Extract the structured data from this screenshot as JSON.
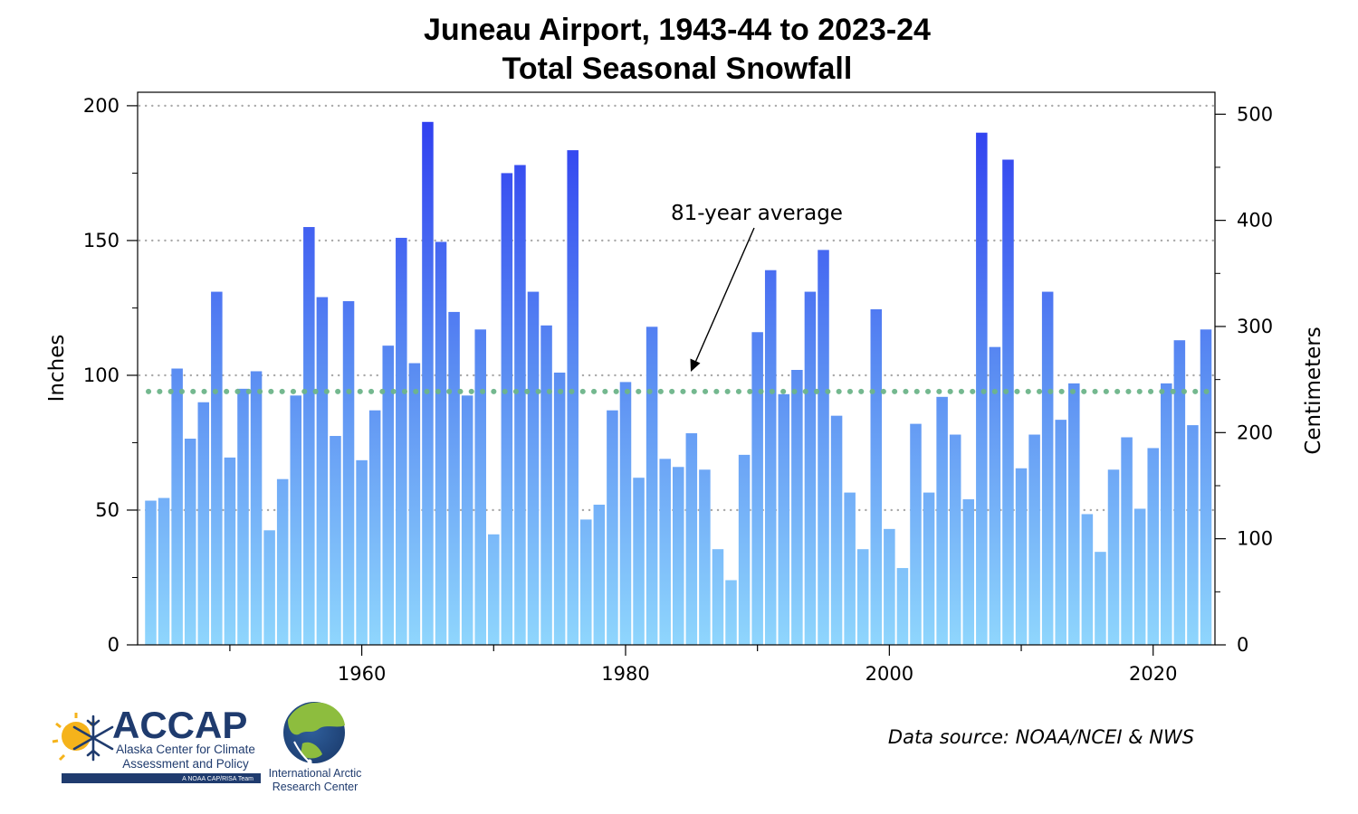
{
  "chart_data": {
    "type": "bar",
    "title_lines": [
      "Juneau Airport, 1943-44 to 2023-24",
      "Total Seasonal Snowfall"
    ],
    "ylabel": "Inches",
    "ylabel_right": "Centimeters",
    "ylim": [
      0,
      205
    ],
    "yticks": [
      0,
      50,
      100,
      150,
      200
    ],
    "ylim_right_cm": [
      0,
      520.7
    ],
    "yticks_right": [
      0,
      100,
      200,
      300,
      400,
      500
    ],
    "xticks": [
      1960,
      1980,
      2000,
      2020
    ],
    "grid": "horizontal dotted at 50, 100, 150, 200",
    "average": 94,
    "annotation": "81-year average",
    "source": "Data source: NOAA/NCEI & NWS",
    "colors": {
      "bar_top": "#2f3df2",
      "bar_bottom": "#8fd3fc",
      "average_line": "#6db58a",
      "grid": "#a9a9a9"
    },
    "years": [
      1944,
      1945,
      1946,
      1947,
      1948,
      1949,
      1950,
      1951,
      1952,
      1953,
      1954,
      1955,
      1956,
      1957,
      1958,
      1959,
      1960,
      1961,
      1962,
      1963,
      1964,
      1965,
      1966,
      1967,
      1968,
      1969,
      1970,
      1971,
      1972,
      1973,
      1974,
      1975,
      1976,
      1977,
      1978,
      1979,
      1980,
      1981,
      1982,
      1983,
      1984,
      1985,
      1986,
      1987,
      1988,
      1989,
      1990,
      1991,
      1992,
      1993,
      1994,
      1995,
      1996,
      1997,
      1998,
      1999,
      2000,
      2001,
      2002,
      2003,
      2004,
      2005,
      2006,
      2007,
      2008,
      2009,
      2010,
      2011,
      2012,
      2013,
      2014,
      2015,
      2016,
      2017,
      2018,
      2019,
      2020,
      2021,
      2022,
      2023,
      2024
    ],
    "values": [
      53.5,
      54.5,
      102.5,
      76.5,
      90,
      131,
      69.5,
      95,
      101.5,
      42.5,
      61.5,
      92.5,
      155,
      129,
      77.5,
      127.5,
      68.5,
      87,
      111,
      151,
      104.5,
      194,
      149.5,
      123.5,
      92.5,
      117,
      41,
      175,
      178,
      131,
      118.5,
      101,
      183.5,
      46.5,
      52,
      87,
      97.5,
      62,
      118,
      69,
      66,
      78.5,
      65,
      35.5,
      24,
      70.5,
      116,
      139,
      93,
      102,
      131,
      146.5,
      85,
      56.5,
      35.5,
      124.5,
      43,
      28.5,
      82,
      56.5,
      92,
      78,
      54,
      190,
      110.5,
      180,
      65.5,
      78,
      131,
      83.5,
      97,
      48.5,
      34.5,
      65,
      77,
      50.5,
      73,
      97,
      113,
      81.5,
      117
    ]
  },
  "logos": {
    "accap": {
      "name": "ACCAP",
      "line1": "Alaska Center for Climate",
      "line2": "Assessment and Policy",
      "tagline": "A NOAA CAP/RISA Team"
    },
    "iarc": {
      "line1": "International Arctic",
      "line2": "Research Center"
    }
  }
}
